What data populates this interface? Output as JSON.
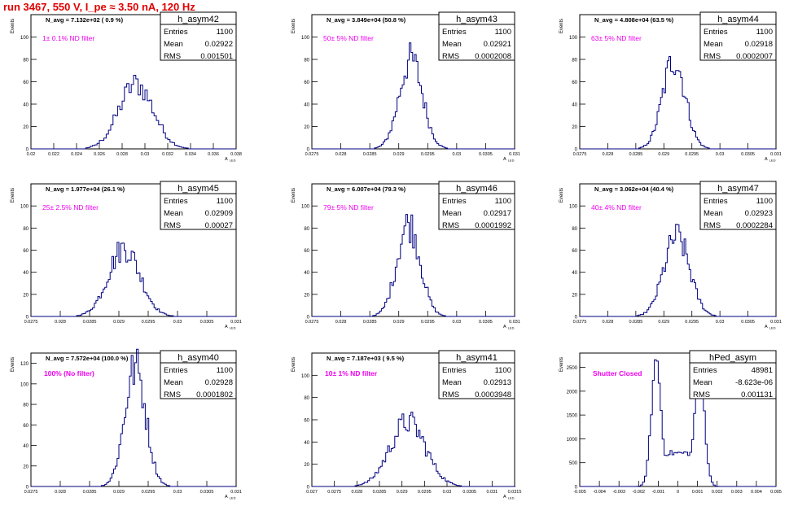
{
  "page": {
    "title": "run 3467,   550 V, I_pe ≈ 3.50 nA, 120 Hz"
  },
  "chart_data": [
    {
      "type": "histogram",
      "name": "h_asym42",
      "title": "N_avg = 7.132e+02 ( 0.9 %)",
      "filter_label": "1± 0.1% ND filter",
      "stats": {
        "Entries": "1100",
        "Mean": "0.02922",
        "RMS": "0.001501"
      },
      "xlabel": "A_LED",
      "ylabel": "Events",
      "xlim": [
        0.02,
        0.038
      ],
      "ylim": [
        0,
        120
      ],
      "x_ticks": [
        0.02,
        0.022,
        0.024,
        0.026,
        0.028,
        0.03,
        0.032,
        0.034,
        0.036,
        0.038
      ],
      "x_tick_labels": [
        "0.02",
        "0.022",
        "0.024",
        "0.026",
        "0.028",
        "0.03",
        "0.032",
        "0.034",
        "0.036",
        "0.038"
      ],
      "y_ticks": [
        0,
        20,
        40,
        60,
        80,
        100
      ],
      "mean": 0.02922,
      "rms": 0.001501,
      "peak": 58,
      "bin_width": 0.0002
    },
    {
      "type": "histogram",
      "name": "h_asym43",
      "title": "N_avg = 3.849e+04 (50.8 %)",
      "filter_label": "50± 5% ND filter",
      "stats": {
        "Entries": "1100",
        "Mean": "0.02921",
        "RMS": "0.0002008"
      },
      "xlabel": "A_LED",
      "ylabel": "Events",
      "xlim": [
        0.0275,
        0.031
      ],
      "ylim": [
        0,
        120
      ],
      "x_ticks": [
        0.0275,
        0.028,
        0.0285,
        0.029,
        0.0295,
        0.03,
        0.0305,
        0.031
      ],
      "x_tick_labels": [
        "0.0275",
        "0.028",
        "0.0285",
        "0.029",
        "0.0295",
        "0.03",
        "0.0305",
        "0.031"
      ],
      "y_ticks": [
        0,
        20,
        40,
        60,
        80,
        100
      ],
      "mean": 0.02921,
      "rms": 0.0002008,
      "peak": 80,
      "bin_width": 3e-05
    },
    {
      "type": "histogram",
      "name": "h_asym44",
      "title": "N_avg = 4.808e+04 (63.5 %)",
      "filter_label": "63± 5% ND filter",
      "stats": {
        "Entries": "1100",
        "Mean": "0.02918",
        "RMS": "0.0002007"
      },
      "xlabel": "A_LED",
      "ylabel": "Events",
      "xlim": [
        0.0275,
        0.031
      ],
      "ylim": [
        0,
        120
      ],
      "x_ticks": [
        0.0275,
        0.028,
        0.0285,
        0.029,
        0.0295,
        0.03,
        0.0305,
        0.031
      ],
      "x_tick_labels": [
        "0.0275",
        "0.028",
        "0.0285",
        "0.029",
        "0.0295",
        "0.03",
        "0.0305",
        "0.031"
      ],
      "y_ticks": [
        0,
        20,
        40,
        60,
        80,
        100
      ],
      "mean": 0.02918,
      "rms": 0.0002007,
      "peak": 80,
      "bin_width": 3e-05
    },
    {
      "type": "histogram",
      "name": "h_asym45",
      "title": "N_avg = 1.977e+04 (26.1 %)",
      "filter_label": "25± 2.5% ND filter",
      "stats": {
        "Entries": "1100",
        "Mean": "0.02909",
        "RMS": "0.00027"
      },
      "xlabel": "A_LED",
      "ylabel": "Events",
      "xlim": [
        0.0275,
        0.031
      ],
      "ylim": [
        0,
        120
      ],
      "x_ticks": [
        0.0275,
        0.028,
        0.0285,
        0.029,
        0.0295,
        0.03,
        0.0305,
        0.031
      ],
      "x_tick_labels": [
        "0.0275",
        "0.028",
        "0.0285",
        "0.029",
        "0.0295",
        "0.03",
        "0.0305",
        "0.031"
      ],
      "y_ticks": [
        0,
        20,
        40,
        60,
        80,
        100
      ],
      "mean": 0.02909,
      "rms": 0.00027,
      "peak": 62,
      "bin_width": 3e-05
    },
    {
      "type": "histogram",
      "name": "h_asym46",
      "title": "N_avg = 6.007e+04 (79.3 %)",
      "filter_label": "79± 5% ND filter",
      "stats": {
        "Entries": "1100",
        "Mean": "0.02917",
        "RMS": "0.0001992"
      },
      "xlabel": "A_LED",
      "ylabel": "Events",
      "xlim": [
        0.0275,
        0.031
      ],
      "ylim": [
        0,
        120
      ],
      "x_ticks": [
        0.0275,
        0.028,
        0.0285,
        0.029,
        0.0295,
        0.03,
        0.0305,
        0.031
      ],
      "x_tick_labels": [
        "0.0275",
        "0.028",
        "0.0285",
        "0.029",
        "0.0295",
        "0.03",
        "0.0305",
        "0.031"
      ],
      "y_ticks": [
        0,
        20,
        40,
        60,
        80,
        100
      ],
      "mean": 0.02917,
      "rms": 0.0001992,
      "peak": 84,
      "bin_width": 3e-05
    },
    {
      "type": "histogram",
      "name": "h_asym47",
      "title": "N_avg = 3.062e+04 (40.4 %)",
      "filter_label": "40± 4% ND filter",
      "stats": {
        "Entries": "1100",
        "Mean": "0.02923",
        "RMS": "0.0002284"
      },
      "xlabel": "A_LED",
      "ylabel": "Events",
      "xlim": [
        0.0275,
        0.031
      ],
      "ylim": [
        0,
        120
      ],
      "x_ticks": [
        0.0275,
        0.028,
        0.0285,
        0.029,
        0.0295,
        0.03,
        0.0305,
        0.031
      ],
      "x_tick_labels": [
        "0.0275",
        "0.028",
        "0.0285",
        "0.029",
        "0.0295",
        "0.03",
        "0.0305",
        "0.031"
      ],
      "y_ticks": [
        0,
        20,
        40,
        60,
        80,
        100
      ],
      "mean": 0.02923,
      "rms": 0.0002284,
      "peak": 72,
      "bin_width": 3e-05
    },
    {
      "type": "histogram",
      "name": "h_asym40",
      "title": "N_avg = 7.572e+04 (100.0 %)",
      "filter_label": "100% (No filter)",
      "stats": {
        "Entries": "1100",
        "Mean": "0.02928",
        "RMS": "0.0001802"
      },
      "xlabel": "A_LED",
      "ylabel": "Events",
      "xlim": [
        0.0275,
        0.031
      ],
      "ylim": [
        0,
        130
      ],
      "x_ticks": [
        0.0275,
        0.028,
        0.0285,
        0.029,
        0.0295,
        0.03,
        0.0305,
        0.031
      ],
      "x_tick_labels": [
        "0.0275",
        "0.028",
        "0.0285",
        "0.029",
        "0.0295",
        "0.03",
        "0.0305",
        "0.031"
      ],
      "y_ticks": [
        0,
        20,
        40,
        60,
        80,
        100,
        120
      ],
      "mean": 0.02928,
      "rms": 0.0001802,
      "peak": 116,
      "bin_width": 3e-05
    },
    {
      "type": "histogram",
      "name": "h_asym41",
      "title": "N_avg = 7.187e+03 ( 9.5 %)",
      "filter_label": "10± 1% ND filter",
      "stats": {
        "Entries": "1100",
        "Mean": "0.02913",
        "RMS": "0.0003948"
      },
      "xlabel": "A_LED",
      "ylabel": "Events",
      "xlim": [
        0.027,
        0.0315
      ],
      "ylim": [
        0,
        120
      ],
      "x_ticks": [
        0.027,
        0.0275,
        0.028,
        0.0285,
        0.029,
        0.0295,
        0.03,
        0.0305,
        0.031,
        0.0315
      ],
      "x_tick_labels": [
        "0.027",
        "0.0275",
        "0.028",
        "0.0285",
        "0.029",
        "0.0295",
        "0.03",
        "0.0305",
        "0.031",
        "0.0315"
      ],
      "y_ticks": [
        0,
        20,
        40,
        60,
        80,
        100
      ],
      "mean": 0.02913,
      "rms": 0.0003948,
      "peak": 58,
      "bin_width": 4e-05
    },
    {
      "type": "histogram",
      "name": "hPed_asym",
      "title": "",
      "filter_label": "Shutter Closed",
      "stats": {
        "Entries": "48981",
        "Mean": "-8.623e-06",
        "RMS": "0.001131"
      },
      "xlabel": "",
      "ylabel": "Events",
      "xlim": [
        -0.005,
        0.005
      ],
      "ylim": [
        0,
        2800
      ],
      "x_ticks": [
        -0.005,
        -0.004,
        -0.003,
        -0.002,
        -0.001,
        0,
        0.001,
        0.002,
        0.003,
        0.004,
        0.005
      ],
      "x_tick_labels": [
        "-0.005",
        "-0.004",
        "-0.003",
        "-0.002",
        "-0.001",
        "0",
        "0.001",
        "0.002",
        "0.003",
        "0.004",
        "0.005"
      ],
      "y_ticks": [
        0,
        500,
        1000,
        1500,
        2000,
        2500
      ],
      "mean": -8.623e-06,
      "rms": 0.001131,
      "bimodal": {
        "peaks": [
          -0.0011,
          0.0011
        ],
        "width": 0.00025,
        "heights": [
          2650,
          2550
        ],
        "baseline": 700
      },
      "bin_width": 0.0001
    }
  ]
}
